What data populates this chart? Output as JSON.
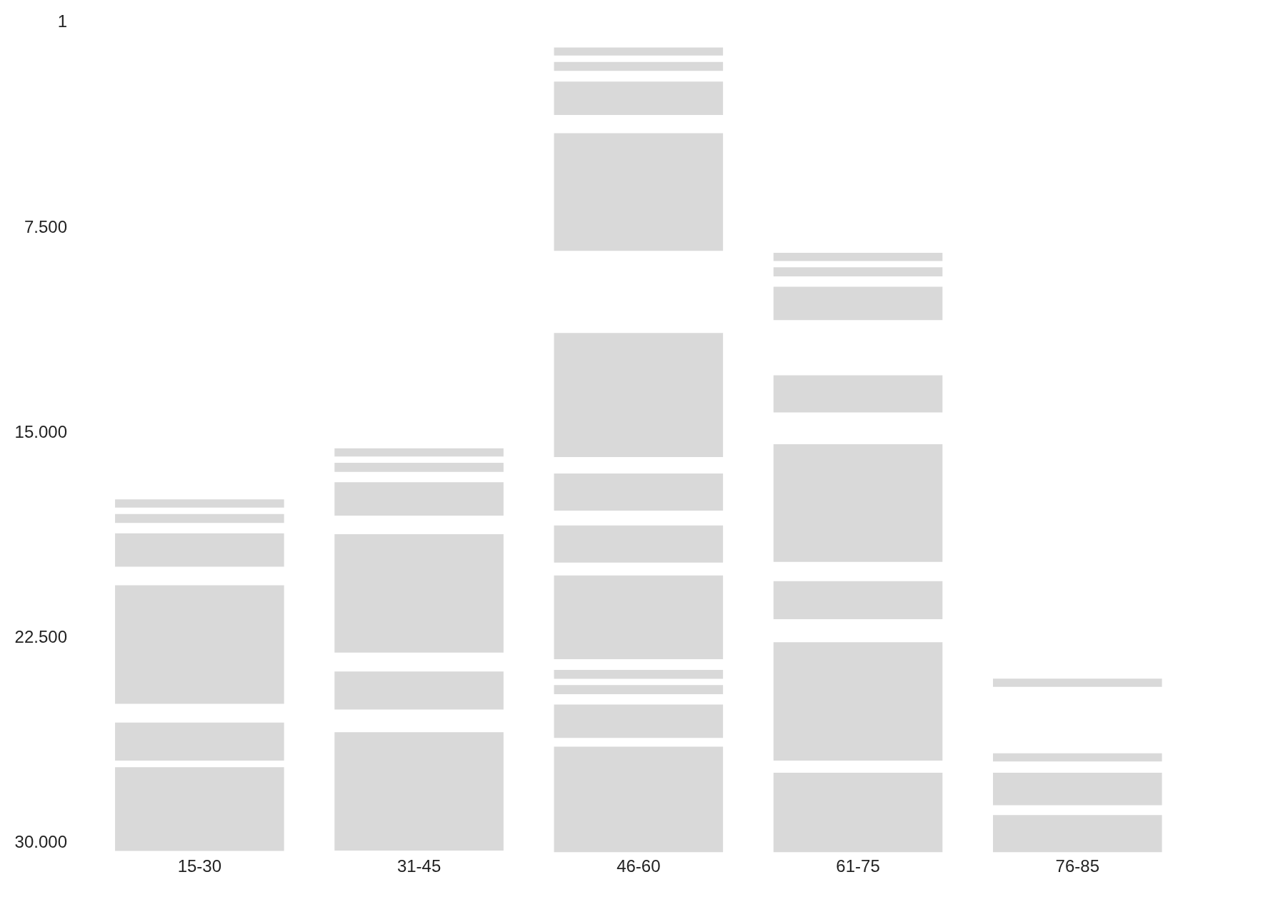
{
  "chart_data": {
    "type": "bar",
    "categories": [
      "15-30",
      "31-45",
      "46-60",
      "61-75",
      "76-85"
    ],
    "ylim": [
      30450,
      0
    ],
    "yticks": [
      {
        "value": 1,
        "label": "1"
      },
      {
        "value": 7500,
        "label": "7.500"
      },
      {
        "value": 15000,
        "label": "15.000"
      },
      {
        "value": 22500,
        "label": "22.500"
      },
      {
        "value": 30000,
        "label": "30.000"
      }
    ],
    "series": [
      {
        "color": "#d9d9d9",
        "base": [
          27270,
          25990,
          26520,
          27470,
          29020
        ],
        "values": [
          3060,
          4330,
          3860,
          2910,
          1360
        ]
      },
      {
        "color": "#d9d9d9",
        "base": [
          25640,
          23770,
          24980,
          22700,
          27470
        ],
        "values": [
          1390,
          1390,
          1220,
          4330,
          1190
        ]
      },
      {
        "color": "#d9d9d9",
        "base": [
          20620,
          18750,
          24270,
          20470,
          26760
        ],
        "values": [
          4330,
          4330,
          330,
          1390,
          300
        ]
      },
      {
        "color": "#d9d9d9",
        "base": [
          18720,
          16850,
          23710,
          15460,
          24030
        ],
        "values": [
          1220,
          1220,
          330,
          4300,
          300
        ]
      },
      {
        "color": "#d9d9d9",
        "base": [
          18010,
          16140,
          20260,
          12940,
          null
        ],
        "values": [
          330,
          330,
          3060,
          1360,
          null
        ]
      },
      {
        "color": "#d9d9d9",
        "base": [
          17480,
          15610,
          18430,
          9700,
          null
        ],
        "values": [
          300,
          300,
          1360,
          1220,
          null
        ]
      },
      {
        "color": "#d9d9d9",
        "base": [
          null,
          null,
          16530,
          8990,
          null
        ],
        "values": [
          null,
          null,
          1360,
          330,
          null
        ]
      },
      {
        "color": "#d9d9d9",
        "base": [
          null,
          null,
          11390,
          8460,
          null
        ],
        "values": [
          null,
          null,
          4540,
          300,
          null
        ]
      },
      {
        "color": "#d9d9d9",
        "base": [
          null,
          null,
          4090,
          null,
          null
        ],
        "values": [
          null,
          null,
          4300,
          null,
          null
        ]
      },
      {
        "color": "#d9d9d9",
        "base": [
          null,
          null,
          2200,
          null,
          null
        ],
        "values": [
          null,
          null,
          1220,
          null,
          null
        ]
      },
      {
        "color": "#d9d9d9",
        "base": [
          null,
          null,
          1480,
          null,
          null
        ],
        "values": [
          null,
          null,
          330,
          null,
          null
        ]
      },
      {
        "color": "#d9d9d9",
        "base": [
          null,
          null,
          950,
          null,
          null
        ],
        "values": [
          null,
          null,
          300,
          null,
          null
        ]
      }
    ]
  }
}
